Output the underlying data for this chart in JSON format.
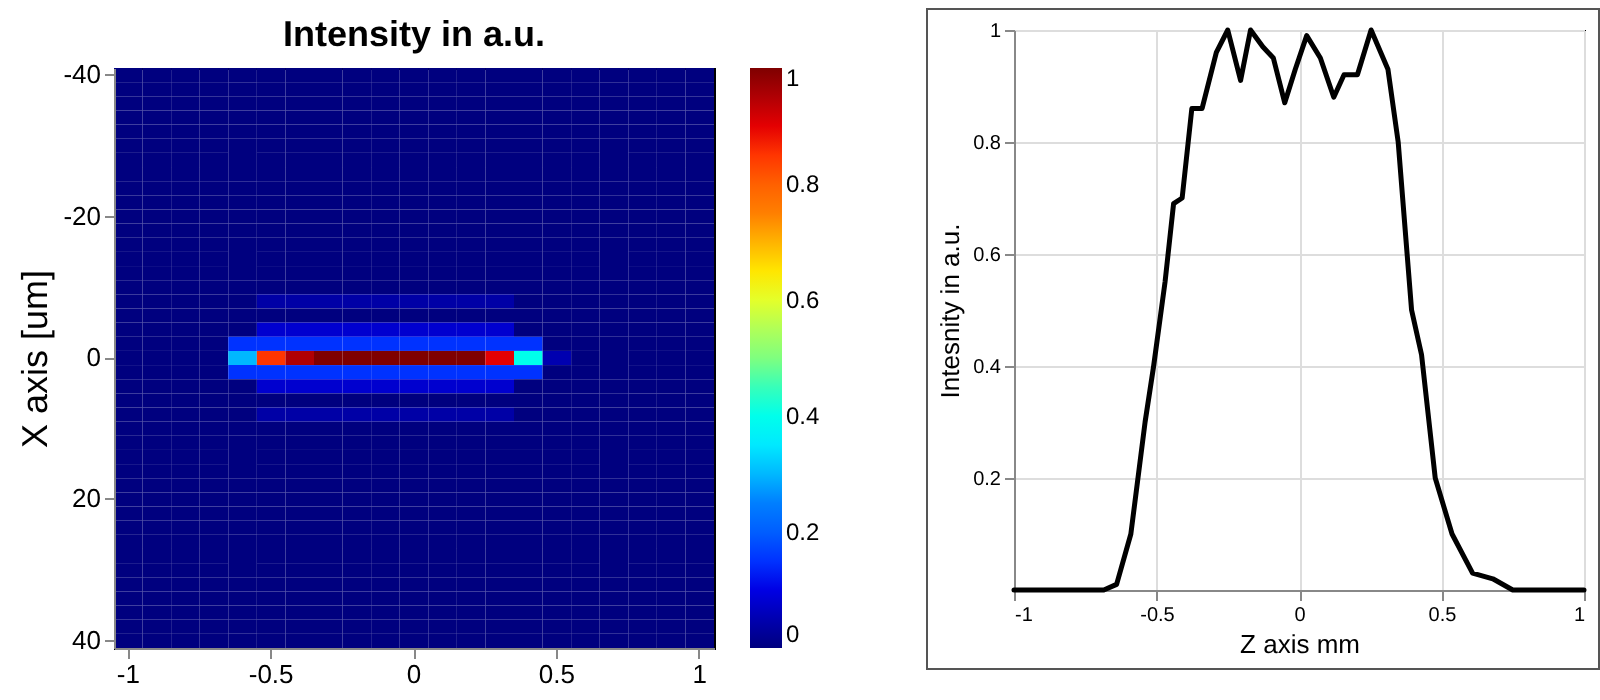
{
  "chart_data": [
    {
      "type": "heatmap",
      "title": "Intensity in a.u.",
      "ylabel": "X axis [um]",
      "categories": [
        "-1",
        null,
        null,
        null,
        null,
        "-0.5",
        null,
        null,
        null,
        null,
        "0",
        null,
        null,
        null,
        null,
        "0.5",
        null,
        null,
        null,
        null,
        "1"
      ],
      "y_categories": [
        "-40",
        null,
        null,
        null,
        null,
        null,
        null,
        null,
        null,
        null,
        "-20",
        null,
        null,
        null,
        null,
        null,
        null,
        null,
        null,
        null,
        "0",
        null,
        null,
        null,
        null,
        null,
        null,
        null,
        null,
        null,
        "20",
        null,
        null,
        null,
        null,
        null,
        null,
        null,
        null,
        null,
        "40"
      ],
      "cells": [
        [
          0,
          0,
          0,
          0,
          0,
          0,
          0,
          0,
          0,
          0,
          0,
          0,
          0,
          0,
          0,
          0,
          0,
          0,
          0,
          0,
          0
        ],
        [
          0,
          0,
          0,
          0,
          0,
          0,
          0,
          0,
          0,
          0,
          0,
          0,
          0,
          0,
          0,
          0,
          0,
          0,
          0,
          0,
          0
        ],
        [
          0,
          0,
          0,
          0,
          0,
          0,
          0,
          0,
          0,
          0,
          0,
          0,
          0,
          0,
          0,
          0,
          0,
          0,
          0,
          0,
          0
        ],
        [
          0,
          0,
          0,
          0,
          0,
          0,
          0,
          0,
          0,
          0,
          0,
          0,
          0,
          0,
          0,
          0,
          0,
          0,
          0,
          0,
          0
        ],
        [
          0,
          0,
          0,
          0,
          0,
          0,
          0,
          0,
          0,
          0,
          0,
          0,
          0,
          0,
          0,
          0,
          0,
          0,
          0,
          0,
          0
        ],
        [
          0,
          0,
          0,
          0,
          0,
          0,
          0,
          0,
          0,
          0,
          0,
          0,
          0,
          0,
          0,
          0,
          0,
          0,
          0,
          0,
          0
        ],
        [
          0,
          0,
          0,
          0,
          0,
          0,
          0,
          0,
          0,
          0,
          0,
          0,
          0,
          0,
          0,
          0,
          0,
          0,
          0,
          0,
          0
        ],
        [
          0,
          0,
          0,
          0,
          0,
          0,
          0,
          0,
          0,
          0,
          0,
          0,
          0,
          0,
          0,
          0,
          0,
          0,
          0,
          0,
          0
        ],
        [
          0,
          0,
          0,
          0,
          0,
          0,
          0,
          0,
          0,
          0,
          0,
          0,
          0,
          0,
          0,
          0,
          0,
          0,
          0,
          0,
          0
        ],
        [
          0,
          0,
          0,
          0,
          0,
          0,
          0,
          0,
          0,
          0,
          0,
          0,
          0,
          0,
          0,
          0,
          0,
          0,
          0,
          0,
          0
        ],
        [
          0,
          0,
          0,
          0,
          0,
          0,
          0,
          0,
          0,
          0,
          0,
          0,
          0,
          0,
          0,
          0,
          0,
          0,
          0,
          0,
          0
        ],
        [
          0,
          0,
          0,
          0,
          0,
          0,
          0,
          0,
          0,
          0,
          0,
          0,
          0,
          0,
          0,
          0,
          0,
          0,
          0,
          0,
          0
        ],
        [
          0,
          0,
          0,
          0,
          0,
          0,
          0,
          0,
          0,
          0,
          0,
          0,
          0,
          0,
          0,
          0,
          0,
          0,
          0,
          0,
          0
        ],
        [
          0,
          0,
          0,
          0,
          0,
          0,
          0,
          0,
          0,
          0,
          0,
          0,
          0,
          0,
          0,
          0,
          0,
          0,
          0,
          0,
          0
        ],
        [
          0,
          0,
          0,
          0,
          0,
          0,
          0,
          0,
          0,
          0,
          0,
          0,
          0,
          0,
          0,
          0,
          0,
          0,
          0,
          0,
          0
        ],
        [
          0,
          0,
          0,
          0,
          0,
          0,
          0,
          0,
          0,
          0,
          0,
          0,
          0,
          0,
          0,
          0,
          0,
          0,
          0,
          0,
          0
        ],
        [
          0,
          0,
          0,
          0,
          0,
          0.04,
          0.04,
          0.04,
          0.04,
          0.04,
          0.04,
          0.04,
          0.04,
          0.04,
          0,
          0,
          0,
          0,
          0,
          0,
          0
        ],
        [
          0,
          0,
          0,
          0,
          0,
          0,
          0,
          0,
          0,
          0,
          0,
          0,
          0,
          0,
          0,
          0,
          0,
          0,
          0,
          0,
          0
        ],
        [
          0,
          0,
          0,
          0,
          0,
          0.08,
          0.08,
          0.08,
          0.08,
          0.08,
          0.08,
          0.08,
          0.08,
          0.08,
          0,
          0,
          0,
          0,
          0,
          0,
          0
        ],
        [
          0,
          0,
          0,
          0,
          0.15,
          0.15,
          0.15,
          0.15,
          0.15,
          0.15,
          0.15,
          0.15,
          0.15,
          0.15,
          0.15,
          0,
          0,
          0,
          0,
          0,
          0
        ],
        [
          0,
          0,
          0,
          0,
          0.3,
          0.85,
          0.95,
          1,
          1,
          1,
          1,
          1,
          1,
          0.9,
          0.4,
          0.05,
          0,
          0,
          0,
          0,
          0
        ],
        [
          0,
          0,
          0,
          0,
          0.15,
          0.15,
          0.15,
          0.15,
          0.15,
          0.15,
          0.15,
          0.15,
          0.15,
          0.15,
          0.15,
          0,
          0,
          0,
          0,
          0,
          0
        ],
        [
          0,
          0,
          0,
          0,
          0,
          0.08,
          0.08,
          0.08,
          0.08,
          0.08,
          0.08,
          0.08,
          0.08,
          0.08,
          0,
          0,
          0,
          0,
          0,
          0,
          0
        ],
        [
          0,
          0,
          0,
          0,
          0,
          0,
          0,
          0,
          0,
          0,
          0,
          0,
          0,
          0,
          0,
          0,
          0,
          0,
          0,
          0,
          0
        ],
        [
          0,
          0,
          0,
          0,
          0,
          0.04,
          0.04,
          0.04,
          0.04,
          0.04,
          0.04,
          0.04,
          0.04,
          0.04,
          0,
          0,
          0,
          0,
          0,
          0,
          0
        ],
        [
          0,
          0,
          0,
          0,
          0,
          0,
          0,
          0,
          0,
          0,
          0,
          0,
          0,
          0,
          0,
          0,
          0,
          0,
          0,
          0,
          0
        ],
        [
          0,
          0,
          0,
          0,
          0,
          0,
          0,
          0,
          0,
          0,
          0,
          0,
          0,
          0,
          0,
          0,
          0,
          0,
          0,
          0,
          0
        ],
        [
          0,
          0,
          0,
          0,
          0,
          0,
          0,
          0,
          0,
          0,
          0,
          0,
          0,
          0,
          0,
          0,
          0,
          0,
          0,
          0,
          0
        ],
        [
          0,
          0,
          0,
          0,
          0,
          0,
          0,
          0,
          0,
          0,
          0,
          0,
          0,
          0,
          0,
          0,
          0,
          0,
          0,
          0,
          0
        ],
        [
          0,
          0,
          0,
          0,
          0,
          0,
          0,
          0,
          0,
          0,
          0,
          0,
          0,
          0,
          0,
          0,
          0,
          0,
          0,
          0,
          0
        ],
        [
          0,
          0,
          0,
          0,
          0,
          0,
          0,
          0,
          0,
          0,
          0,
          0,
          0,
          0,
          0,
          0,
          0,
          0,
          0,
          0,
          0
        ],
        [
          0,
          0,
          0,
          0,
          0,
          0,
          0,
          0,
          0,
          0,
          0,
          0,
          0,
          0,
          0,
          0,
          0,
          0,
          0,
          0,
          0
        ],
        [
          0,
          0,
          0,
          0,
          0,
          0,
          0,
          0,
          0,
          0,
          0,
          0,
          0,
          0,
          0,
          0,
          0,
          0,
          0,
          0,
          0
        ],
        [
          0,
          0,
          0,
          0,
          0,
          0,
          0,
          0,
          0,
          0,
          0,
          0,
          0,
          0,
          0,
          0,
          0,
          0,
          0,
          0,
          0
        ],
        [
          0,
          0,
          0,
          0,
          0,
          0,
          0,
          0,
          0,
          0,
          0,
          0,
          0,
          0,
          0,
          0,
          0,
          0,
          0,
          0,
          0
        ],
        [
          0,
          0,
          0,
          0,
          0,
          0,
          0,
          0,
          0,
          0,
          0,
          0,
          0,
          0,
          0,
          0,
          0,
          0,
          0,
          0,
          0
        ],
        [
          0,
          0,
          0,
          0,
          0,
          0,
          0,
          0,
          0,
          0,
          0,
          0,
          0,
          0,
          0,
          0,
          0,
          0,
          0,
          0,
          0
        ],
        [
          0,
          0,
          0,
          0,
          0,
          0,
          0,
          0,
          0,
          0,
          0,
          0,
          0,
          0,
          0,
          0,
          0,
          0,
          0,
          0,
          0
        ],
        [
          0,
          0,
          0,
          0,
          0,
          0,
          0,
          0,
          0,
          0,
          0,
          0,
          0,
          0,
          0,
          0,
          0,
          0,
          0,
          0,
          0
        ],
        [
          0,
          0,
          0,
          0,
          0,
          0,
          0,
          0,
          0,
          0,
          0,
          0,
          0,
          0,
          0,
          0,
          0,
          0,
          0,
          0,
          0
        ],
        [
          0,
          0,
          0,
          0,
          0,
          0,
          0,
          0,
          0,
          0,
          0,
          0,
          0,
          0,
          0,
          0,
          0,
          0,
          0,
          0,
          0
        ]
      ],
      "clim": [
        0,
        1
      ],
      "cticks": [
        0,
        0.2,
        0.4,
        0.6,
        0.8,
        1
      ]
    },
    {
      "type": "line",
      "xlabel": "Z axis mm",
      "ylabel": "Intesnity in a.u.",
      "color": "#000000",
      "x": [
        -1,
        -0.685,
        -0.64,
        -0.59,
        -0.54,
        -0.51,
        -0.47,
        -0.44,
        -0.41,
        -0.376,
        -0.34,
        -0.29,
        -0.25,
        -0.205,
        -0.17,
        -0.127,
        -0.09,
        -0.05,
        -0.013,
        0.027,
        0.075,
        0.122,
        0.158,
        0.205,
        0.253,
        0.312,
        0.348,
        0.395,
        0.43,
        0.478,
        0.537,
        0.609,
        0.68,
        0.75,
        1
      ],
      "values": [
        0,
        0,
        0.01,
        0.1,
        0.3,
        0.4,
        0.55,
        0.69,
        0.7,
        0.86,
        0.86,
        0.96,
        1,
        0.91,
        1,
        0.97,
        0.95,
        0.87,
        0.93,
        0.99,
        0.95,
        0.88,
        0.92,
        0.92,
        1,
        0.93,
        0.8,
        0.5,
        0.42,
        0.2,
        0.1,
        0.03,
        0.02,
        0,
        0
      ],
      "xlim": [
        -1,
        1
      ],
      "xticks": [
        -1,
        -0.5,
        0,
        0.5,
        1
      ],
      "ylim": [
        0,
        1
      ],
      "yticks": [
        0.2,
        0.4,
        0.6,
        0.8,
        1
      ],
      "grid": true
    }
  ]
}
